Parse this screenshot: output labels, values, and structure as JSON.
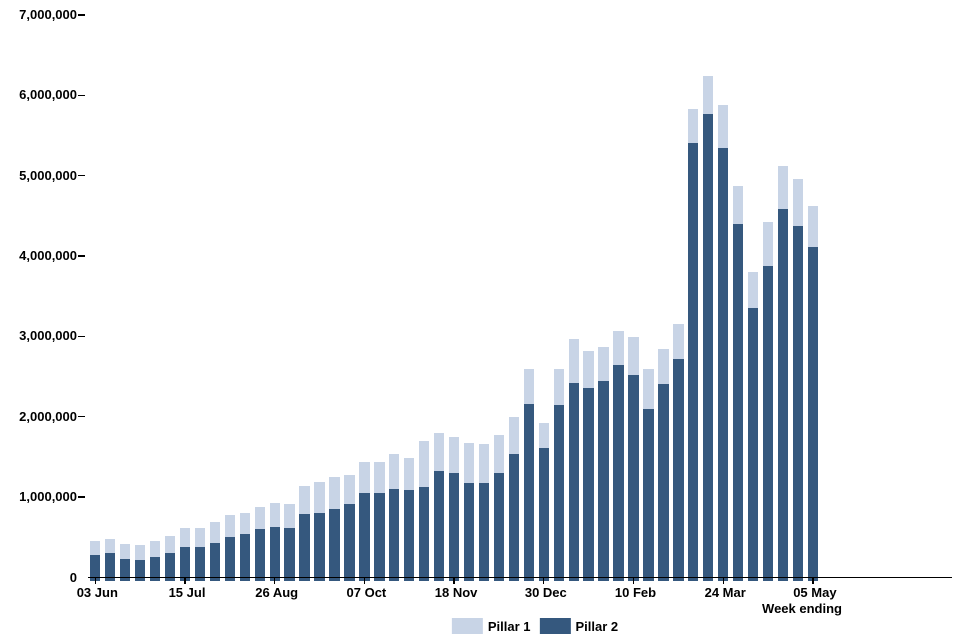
{
  "chart_data": {
    "type": "bar",
    "stacked": true,
    "stack_order_bottom_to_top": [
      "Pillar 2",
      "Pillar 1"
    ],
    "title": "",
    "xlabel": "Week ending",
    "ylabel": "",
    "ylim": [
      0,
      7000000
    ],
    "grid": false,
    "legend_position": "bottom-center",
    "n_bars": 49,
    "y_tick_labels": [
      "0",
      "1,000,000",
      "2,000,000",
      "3,000,000",
      "4,000,000",
      "5,000,000",
      "6,000,000",
      "7,000,000"
    ],
    "x_ticks": [
      {
        "bar_index": 0,
        "label": "03 Jun"
      },
      {
        "bar_index": 6,
        "label": "15 Jul"
      },
      {
        "bar_index": 12,
        "label": "26 Aug"
      },
      {
        "bar_index": 18,
        "label": "07 Oct"
      },
      {
        "bar_index": 24,
        "label": "18 Nov"
      },
      {
        "bar_index": 30,
        "label": "30 Dec"
      },
      {
        "bar_index": 36,
        "label": "10 Feb"
      },
      {
        "bar_index": 42,
        "label": "24 Mar"
      },
      {
        "bar_index": 48,
        "label": "05 May"
      }
    ],
    "series": [
      {
        "name": "Pillar 1",
        "color": "#c8d4e6",
        "values": [
          170000,
          180000,
          185000,
          185000,
          205000,
          205000,
          240000,
          225000,
          255000,
          270000,
          260000,
          280000,
          305000,
          290000,
          345000,
          390000,
          400000,
          360000,
          390000,
          390000,
          435000,
          405000,
          580000,
          475000,
          445000,
          500000,
          480000,
          465000,
          460000,
          435000,
          310000,
          450000,
          540000,
          470000,
          430000,
          430000,
          475000,
          500000,
          435000,
          435000,
          425000,
          475000,
          525000,
          475000,
          440000,
          545000,
          545000,
          580000,
          505000
        ]
      },
      {
        "name": "Pillar 2",
        "color": "#35587e",
        "values": [
          280000,
          300000,
          230000,
          215000,
          250000,
          310000,
          380000,
          385000,
          430000,
          505000,
          540000,
          600000,
          625000,
          620000,
          795000,
          800000,
          850000,
          920000,
          1050000,
          1050000,
          1100000,
          1085000,
          1120000,
          1320000,
          1305000,
          1170000,
          1180000,
          1305000,
          1540000,
          2155000,
          1615000,
          2145000,
          2425000,
          2355000,
          2440000,
          2640000,
          2520000,
          2095000,
          2405000,
          2715000,
          5410000,
          5770000,
          5350000,
          4395000,
          3360000,
          3875000,
          4580000,
          4380000,
          4115000
        ]
      }
    ]
  }
}
